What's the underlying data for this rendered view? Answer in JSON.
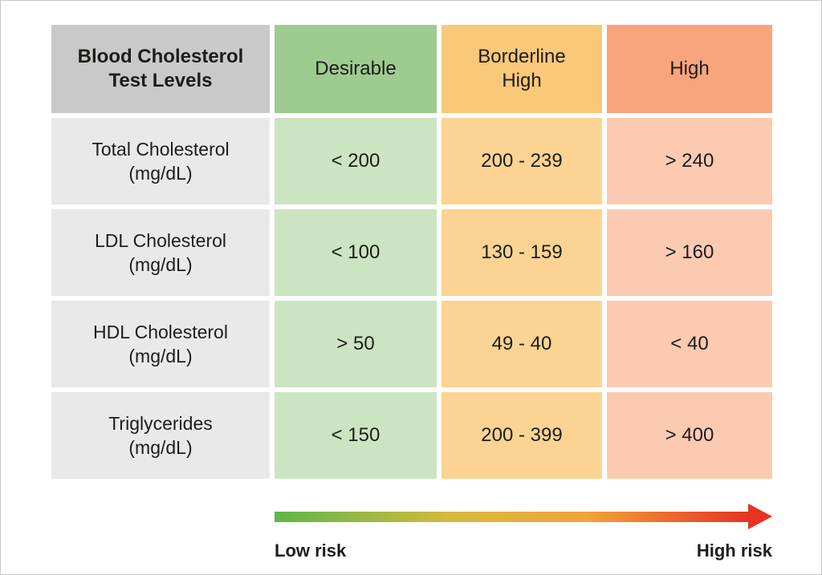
{
  "chart_data": {
    "type": "table",
    "title": "Blood Cholesterol Test Levels",
    "columns": [
      "Desirable",
      "Borderline High",
      "High"
    ],
    "rows": [
      {
        "label": "Total Cholesterol",
        "unit": "(mg/dL)",
        "desirable": "< 200",
        "borderline_high": "200 - 239",
        "high": "> 240"
      },
      {
        "label": "LDL Cholesterol",
        "unit": "(mg/dL)",
        "desirable": "< 100",
        "borderline_high": "130 - 159",
        "high": "> 160"
      },
      {
        "label": "HDL Cholesterol",
        "unit": "(mg/dL)",
        "desirable": "> 50",
        "borderline_high": "49 - 40",
        "high": "< 40"
      },
      {
        "label": "Triglycerides",
        "unit": "(mg/dL)",
        "desirable": "< 150",
        "borderline_high": "200 - 399",
        "high": "> 400"
      }
    ],
    "risk_scale": {
      "low_label": "Low risk",
      "high_label": "High risk"
    },
    "legend_position": "bottom",
    "grid": false
  },
  "colors": {
    "header_gray": "#c9c9c9",
    "row_label_gray": "#e9e9e9",
    "header_green": "#9ecb90",
    "cell_green": "#cbe4c1",
    "header_amber": "#f9c878",
    "cell_amber": "#fbd392",
    "header_salmon": "#f8a47c",
    "cell_salmon": "#fccab1",
    "text": "#1d1d1b",
    "arrow_green": "#5bb847",
    "arrow_yellow": "#d9b93c",
    "arrow_orange": "#f2a338",
    "arrow_red": "#e63323"
  }
}
